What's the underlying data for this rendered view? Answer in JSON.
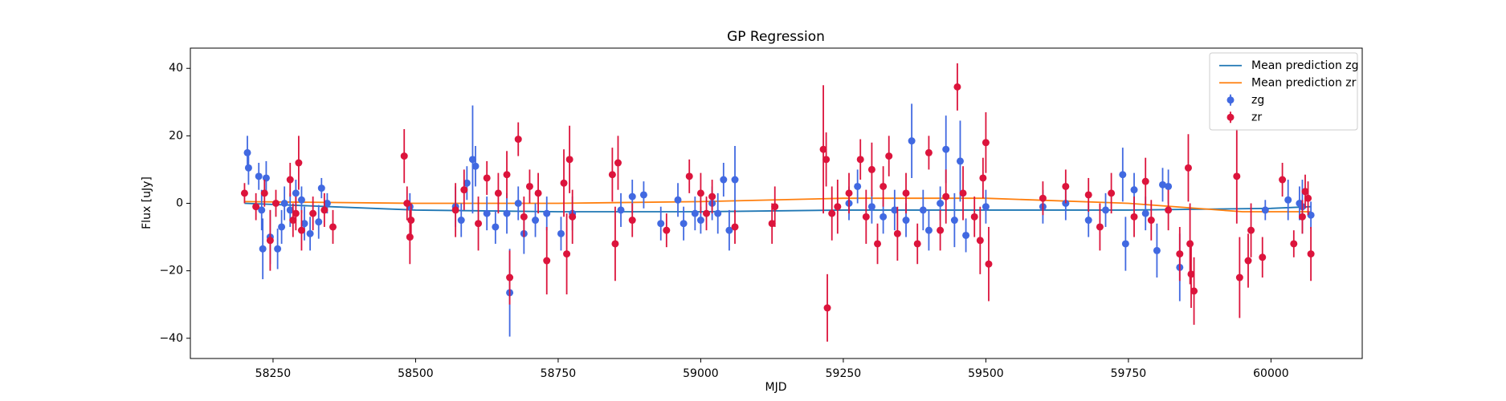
{
  "chart_data": {
    "type": "scatter",
    "title": "GP Regression",
    "x_label": "MJD",
    "y_label": "Flux [uJy]",
    "xlim": [
      58105,
      60160
    ],
    "xticks": [
      58250,
      58500,
      58750,
      59000,
      59250,
      59500,
      59750,
      60000
    ],
    "ylim": [
      -46,
      46
    ],
    "yticks": [
      {
        "value": -40,
        "label": "−40"
      },
      {
        "value": -20,
        "label": "−20"
      },
      0,
      20,
      40
    ],
    "legend": "upper right",
    "series": [
      {
        "name": "Mean prediction zg",
        "type": "line",
        "color": "#1f77b4",
        "x": [
          58200,
          58350,
          58500,
          58750,
          59000,
          59250,
          59500,
          59750,
          60000,
          60070
        ],
        "values": [
          0,
          -1,
          -2,
          -2.5,
          -2.5,
          -2,
          -2,
          -2,
          -1.5,
          -1
        ]
      },
      {
        "name": "Mean prediction zr",
        "type": "line",
        "color": "#ff7f0e",
        "x": [
          58200,
          58500,
          58750,
          59000,
          59250,
          59500,
          59750,
          59950,
          60070
        ],
        "values": [
          0.5,
          0,
          0,
          0.5,
          1.5,
          1.5,
          0,
          -2.5,
          -2.5
        ]
      },
      {
        "name": "zg",
        "type": "errorbar",
        "color": "#4169e1",
        "x": [
          58205,
          58207,
          58225,
          58230,
          58232,
          58238,
          58245,
          58258,
          58265,
          58270,
          58280,
          58290,
          58300,
          58305,
          58315,
          58330,
          58335,
          58345,
          58490,
          58570,
          58580,
          58590,
          58600,
          58605,
          58625,
          58640,
          58660,
          58665,
          58680,
          58690,
          58710,
          58730,
          58755,
          58775,
          58860,
          58880,
          58900,
          58930,
          58960,
          58970,
          58990,
          59000,
          59020,
          59030,
          59040,
          59050,
          59060,
          59260,
          59275,
          59300,
          59320,
          59340,
          59360,
          59370,
          59390,
          59400,
          59420,
          59430,
          59445,
          59455,
          59465,
          59500,
          59600,
          59640,
          59680,
          59710,
          59740,
          59745,
          59760,
          59780,
          59800,
          59810,
          59820,
          59840,
          59990,
          60030,
          60050,
          60055,
          60070
        ],
        "values": [
          15,
          10.5,
          8,
          -2,
          -13.5,
          7.5,
          -10,
          -13.5,
          -7,
          0,
          -2,
          3,
          1,
          -6,
          -9,
          -5.5,
          4.5,
          0,
          -1,
          -1,
          -5,
          6,
          13,
          11,
          -3,
          -7,
          -3,
          -26.5,
          0,
          -9,
          -5,
          -3,
          -9,
          -3,
          -2,
          2,
          2.5,
          -6,
          1,
          -6,
          -3,
          -5,
          0,
          -3,
          7,
          -8,
          7,
          0,
          5,
          -1,
          -4,
          -2,
          -5,
          18.5,
          -2,
          -8,
          0,
          16,
          -5,
          12.5,
          -9.5,
          -1,
          -1,
          0,
          -5,
          -2,
          8.5,
          -12,
          4,
          -3,
          -14,
          5.5,
          5,
          -19,
          -2,
          1,
          0,
          -1,
          -3.5
        ],
        "errors": [
          5,
          5,
          4,
          6,
          9,
          5,
          8,
          6,
          5,
          5,
          5,
          4,
          4,
          5,
          5,
          5,
          3,
          3,
          4,
          6,
          5,
          5,
          16,
          6,
          5,
          5,
          6,
          13,
          5,
          6,
          5,
          5,
          5,
          5,
          5,
          5,
          4,
          5,
          5,
          5,
          5,
          4,
          5,
          6,
          5,
          6,
          10,
          5,
          5,
          5,
          5,
          6,
          5,
          11,
          6,
          6,
          5,
          10,
          8,
          12,
          5,
          5,
          5,
          5,
          5,
          5,
          8,
          8,
          5,
          5,
          8,
          5,
          5,
          10,
          3,
          6,
          5,
          8,
          4
        ]
      },
      {
        "name": "zr",
        "type": "errorbar",
        "color": "#dc143c",
        "x": [
          58200,
          58220,
          58235,
          58245,
          58255,
          58280,
          58285,
          58290,
          58295,
          58300,
          58320,
          58340,
          58355,
          58480,
          58485,
          58490,
          58492,
          58570,
          58585,
          58610,
          58625,
          58645,
          58660,
          58665,
          58680,
          58690,
          58700,
          58715,
          58730,
          58760,
          58765,
          58770,
          58775,
          58845,
          58850,
          58855,
          58880,
          58940,
          58980,
          59000,
          59010,
          59020,
          59060,
          59125,
          59130,
          59215,
          59220,
          59222,
          59230,
          59240,
          59260,
          59280,
          59290,
          59300,
          59310,
          59320,
          59330,
          59345,
          59360,
          59380,
          59400,
          59420,
          59430,
          59450,
          59460,
          59480,
          59490,
          59495,
          59500,
          59505,
          59600,
          59640,
          59680,
          59700,
          59720,
          59760,
          59780,
          59790,
          59820,
          59840,
          59855,
          59858,
          59860,
          59865,
          59940,
          59945,
          59960,
          59965,
          59985,
          60020,
          60040,
          60055,
          60060,
          60065,
          60070
        ],
        "values": [
          3,
          -1,
          3,
          -11,
          0,
          7,
          -5,
          -3,
          12,
          -8,
          -3,
          -2,
          -7,
          14,
          0,
          -10,
          -5,
          -2,
          4,
          -6,
          7.5,
          3,
          8.5,
          -22,
          19,
          -4,
          5,
          3,
          -17,
          6,
          -15,
          13,
          -4,
          8.5,
          -12,
          12,
          -5,
          -8,
          8,
          3,
          -3,
          2,
          -7,
          -6,
          -1,
          16,
          13,
          -31,
          -3,
          -1,
          3,
          13,
          -4,
          10,
          -12,
          5,
          14,
          -9,
          3,
          -12,
          15,
          -8,
          2,
          34.5,
          3,
          -4,
          -11,
          7.5,
          18,
          -18,
          1.5,
          5,
          2.5,
          -7,
          3,
          -4,
          6.5,
          -5,
          -2,
          -15,
          10.5,
          -12,
          -21,
          -26,
          8,
          -22,
          -17,
          -8,
          -16,
          7,
          -12,
          -4,
          3.5,
          1.5,
          -15
        ],
        "errors": [
          3,
          4,
          4,
          9,
          4,
          5,
          5,
          5,
          8,
          6,
          5,
          5,
          5,
          8,
          5,
          8,
          5,
          8,
          6,
          8,
          5,
          6,
          7,
          8,
          5,
          6,
          5,
          6,
          10,
          10,
          12,
          10,
          8,
          8,
          11,
          8,
          5,
          5,
          5,
          6,
          5,
          5,
          5,
          6,
          6,
          19,
          8,
          10,
          8,
          8,
          6,
          6,
          8,
          8,
          6,
          6,
          6,
          8,
          6,
          6,
          5,
          6,
          8,
          7,
          8,
          6,
          10,
          6,
          9,
          11,
          5,
          5,
          5,
          7,
          6,
          6,
          7,
          6,
          6,
          8,
          10,
          12,
          10,
          10,
          14,
          12,
          8,
          8,
          6,
          5,
          4,
          5,
          5,
          5,
          8
        ]
      }
    ]
  }
}
